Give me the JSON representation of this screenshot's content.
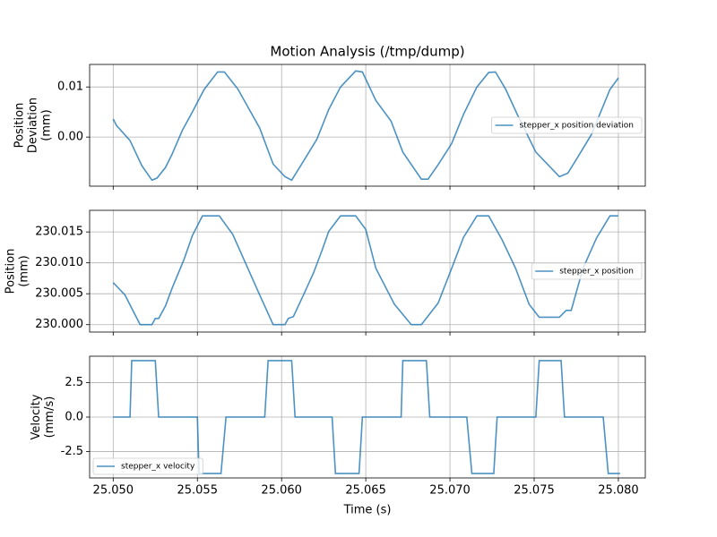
{
  "chart_data": [
    {
      "type": "line",
      "title": "Motion Analysis (/tmp/dump)",
      "ylabel": [
        "Position",
        "Deviation",
        "(mm)"
      ],
      "x": [
        25.05,
        25.0502,
        25.051,
        25.0517,
        25.0523,
        25.0526,
        25.0531,
        25.0535,
        25.0541,
        25.0547,
        25.0554,
        25.0562,
        25.0566,
        25.0574,
        25.0587,
        25.0595,
        25.0602,
        25.0606,
        25.0613,
        25.0621,
        25.0628,
        25.0635,
        25.0644,
        25.0648,
        25.0656,
        25.0665,
        25.0672,
        25.0683,
        25.0687,
        25.0693,
        25.0701,
        25.0708,
        25.0716,
        25.0723,
        25.0727,
        25.0733,
        25.074,
        25.0751,
        25.0765,
        25.077,
        25.0775,
        25.0784,
        25.0795,
        25.08
      ],
      "series": [
        {
          "name": "stepper_x position deviation",
          "color": "#1f77b4",
          "values": [
            0.0036,
            0.0023,
            -0.0007,
            -0.0057,
            -0.0086,
            -0.0082,
            -0.0061,
            -0.0034,
            0.0013,
            0.005,
            0.0095,
            0.013,
            0.013,
            0.0096,
            0.0018,
            -0.0054,
            -0.0079,
            -0.0086,
            -0.0048,
            -0.0004,
            0.0055,
            0.01,
            0.0132,
            0.013,
            0.0073,
            0.0032,
            -0.003,
            -0.0084,
            -0.0084,
            -0.0055,
            -0.0013,
            0.0045,
            0.01,
            0.0129,
            0.013,
            0.0096,
            0.0045,
            -0.003,
            -0.0079,
            -0.0072,
            -0.0045,
            0.0005,
            0.0095,
            0.0118
          ]
        }
      ],
      "xlim": [
        25.0486,
        25.0816
      ],
      "xticks": [
        25.05,
        25.055,
        25.06,
        25.065,
        25.07,
        25.075,
        25.08
      ],
      "ylim": [
        -0.0098,
        0.0145
      ],
      "yticks": [
        {
          "value": 0,
          "label": "0.00"
        },
        0.01
      ],
      "grid": true,
      "legend": "center right"
    },
    {
      "type": "line",
      "ylabel": [
        "Position",
        "(mm)"
      ],
      "x": [
        25.05,
        25.0507,
        25.0516,
        25.0523,
        25.0525,
        25.0527,
        25.0531,
        25.0535,
        25.0542,
        25.0547,
        25.0553,
        25.0563,
        25.0571,
        25.0587,
        25.0595,
        25.0602,
        25.0604,
        25.0607,
        25.0613,
        25.0619,
        25.0624,
        25.0628,
        25.0635,
        25.0644,
        25.065,
        25.0656,
        25.0667,
        25.0677,
        25.0683,
        25.0693,
        25.0701,
        25.0708,
        25.0716,
        25.0723,
        25.0731,
        25.0739,
        25.0747,
        25.0753,
        25.0765,
        25.0769,
        25.0772,
        25.0779,
        25.0787,
        25.0795,
        25.08
      ],
      "series": [
        {
          "name": "stepper_x position",
          "color": "#1f77b4",
          "values": [
            230.0068,
            230.0048,
            230.0,
            230.0,
            230.001,
            230.001,
            230.003,
            230.0059,
            230.0105,
            230.0144,
            230.0176,
            230.0176,
            230.0146,
            230.0048,
            230.0,
            230.0,
            230.001,
            230.0013,
            230.0048,
            230.0084,
            230.012,
            230.0151,
            230.0176,
            230.0176,
            230.0154,
            230.0091,
            230.0033,
            230.0,
            230.0,
            230.0035,
            230.0091,
            230.0141,
            230.0176,
            230.0176,
            230.0137,
            230.0091,
            230.0033,
            230.0012,
            230.0012,
            230.0023,
            230.0023,
            230.0091,
            230.014,
            230.0176,
            230.0176
          ]
        }
      ],
      "xlim": [
        25.0486,
        25.0816
      ],
      "xticks": [
        25.05,
        25.055,
        25.06,
        25.065,
        25.07,
        25.075,
        25.08
      ],
      "ylim": [
        229.9988,
        230.0185
      ],
      "yticks": [
        {
          "value": 230.0,
          "label": "230.000"
        },
        230.005,
        {
          "value": 230.01,
          "label": "230.010"
        },
        230.015
      ],
      "grid": true,
      "legend": "center right"
    },
    {
      "type": "line",
      "ylabel": [
        "Velocity",
        "(mm/s)"
      ],
      "xlabel": "Time (s)",
      "x": [
        25.05,
        25.051,
        25.0511,
        25.0525,
        25.0527,
        25.055,
        25.0551,
        25.0564,
        25.0567,
        25.059,
        25.0592,
        25.0606,
        25.0608,
        25.063,
        25.0632,
        25.0646,
        25.0648,
        25.0671,
        25.0672,
        25.0686,
        25.0688,
        25.071,
        25.0713,
        25.0726,
        25.0728,
        25.0751,
        25.0753,
        25.0766,
        25.0768,
        25.0791,
        25.0794,
        25.0801
      ],
      "series": [
        {
          "name": "stepper_x velocity",
          "color": "#1f77b4",
          "values": [
            0,
            0,
            4.1,
            4.1,
            0,
            0,
            -4.1,
            -4.1,
            0,
            0,
            4.1,
            4.1,
            0,
            0,
            -4.1,
            -4.1,
            0,
            0,
            4.1,
            4.1,
            0,
            0,
            -4.1,
            -4.1,
            0,
            0,
            4.1,
            4.1,
            0,
            0,
            -4.1,
            -4.1
          ]
        }
      ],
      "xlim": [
        25.0486,
        25.0816
      ],
      "xticks": [
        {
          "value": 25.05,
          "label": "25.050"
        },
        {
          "value": 25.055,
          "label": "25.055"
        },
        {
          "value": 25.06,
          "label": "25.060"
        },
        {
          "value": 25.065,
          "label": "25.065"
        },
        {
          "value": 25.07,
          "label": "25.070"
        },
        {
          "value": 25.075,
          "label": "25.075"
        },
        {
          "value": 25.08,
          "label": "25.080"
        }
      ],
      "ylim": [
        -4.42,
        4.42
      ],
      "yticks": [
        -2.5,
        {
          "value": 0,
          "label": "0.0"
        },
        2.5
      ],
      "grid": true,
      "legend": "lower left"
    }
  ]
}
